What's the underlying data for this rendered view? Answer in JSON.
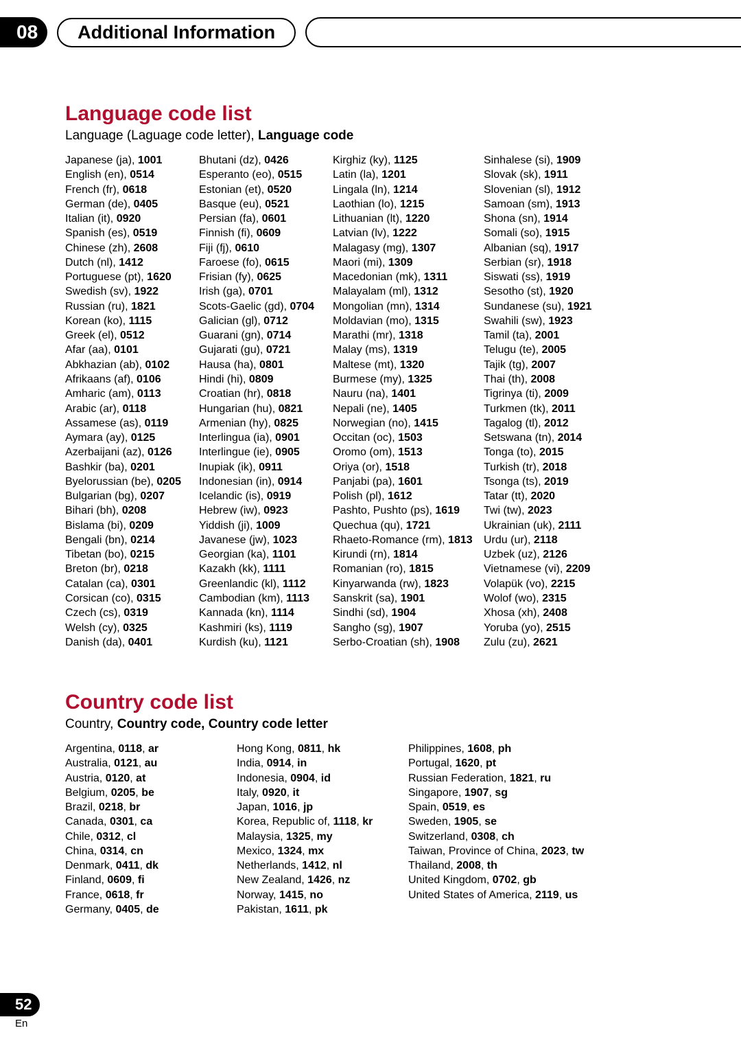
{
  "header": {
    "chapter_number": "08",
    "chapter_title": "Additional Information"
  },
  "footer": {
    "page_number": "52",
    "lang_label": "En"
  },
  "language_section": {
    "title": "Language code list",
    "subtitle_plain": "Language (Laguage code letter), ",
    "subtitle_bold": "Language code",
    "columns": [
      [
        {
          "name": "Japanese",
          "abbr": "ja",
          "code": "1001"
        },
        {
          "name": "English",
          "abbr": "en",
          "code": "0514"
        },
        {
          "name": "French",
          "abbr": "fr",
          "code": "0618"
        },
        {
          "name": "German",
          "abbr": "de",
          "code": "0405"
        },
        {
          "name": "Italian",
          "abbr": "it",
          "code": "0920"
        },
        {
          "name": "Spanish",
          "abbr": "es",
          "code": "0519"
        },
        {
          "name": "Chinese",
          "abbr": "zh",
          "code": "2608"
        },
        {
          "name": "Dutch",
          "abbr": "nl",
          "code": "1412"
        },
        {
          "name": "Portuguese",
          "abbr": "pt",
          "code": "1620"
        },
        {
          "name": "Swedish",
          "abbr": "sv",
          "code": "1922"
        },
        {
          "name": "Russian",
          "abbr": "ru",
          "code": "1821"
        },
        {
          "name": "Korean",
          "abbr": "ko",
          "code": "1115"
        },
        {
          "name": "Greek",
          "abbr": "el",
          "code": "0512"
        },
        {
          "name": "Afar",
          "abbr": "aa",
          "code": "0101"
        },
        {
          "name": "Abkhazian",
          "abbr": "ab",
          "code": "0102"
        },
        {
          "name": "Afrikaans",
          "abbr": "af",
          "code": "0106"
        },
        {
          "name": "Amharic",
          "abbr": "am",
          "code": "0113"
        },
        {
          "name": "Arabic",
          "abbr": "ar",
          "code": "0118"
        },
        {
          "name": "Assamese",
          "abbr": "as",
          "code": "0119"
        },
        {
          "name": "Aymara",
          "abbr": "ay",
          "code": "0125"
        },
        {
          "name": "Azerbaijani",
          "abbr": "az",
          "code": "0126"
        },
        {
          "name": "Bashkir",
          "abbr": "ba",
          "code": "0201"
        },
        {
          "name": "Byelorussian",
          "abbr": "be",
          "code": "0205"
        },
        {
          "name": "Bulgarian",
          "abbr": "bg",
          "code": "0207"
        },
        {
          "name": "Bihari",
          "abbr": "bh",
          "code": "0208"
        },
        {
          "name": "Bislama",
          "abbr": "bi",
          "code": "0209"
        },
        {
          "name": "Bengali",
          "abbr": "bn",
          "code": "0214"
        },
        {
          "name": "Tibetan",
          "abbr": "bo",
          "code": "0215"
        },
        {
          "name": "Breton",
          "abbr": "br",
          "code": "0218"
        },
        {
          "name": "Catalan",
          "abbr": "ca",
          "code": "0301"
        },
        {
          "name": "Corsican",
          "abbr": "co",
          "code": "0315"
        },
        {
          "name": "Czech",
          "abbr": "cs",
          "code": "0319"
        },
        {
          "name": "Welsh",
          "abbr": "cy",
          "code": "0325"
        },
        {
          "name": "Danish",
          "abbr": "da",
          "code": "0401"
        }
      ],
      [
        {
          "name": "Bhutani",
          "abbr": "dz",
          "code": "0426"
        },
        {
          "name": "Esperanto",
          "abbr": "eo",
          "code": "0515"
        },
        {
          "name": "Estonian",
          "abbr": "et",
          "code": "0520"
        },
        {
          "name": "Basque",
          "abbr": "eu",
          "code": "0521"
        },
        {
          "name": "Persian",
          "abbr": "fa",
          "code": "0601"
        },
        {
          "name": "Finnish",
          "abbr": "fi",
          "code": "0609"
        },
        {
          "name": "Fiji",
          "abbr": "fj",
          "code": "0610"
        },
        {
          "name": "Faroese",
          "abbr": "fo",
          "code": "0615"
        },
        {
          "name": "Frisian",
          "abbr": "fy",
          "code": "0625"
        },
        {
          "name": "Irish",
          "abbr": "ga",
          "code": "0701"
        },
        {
          "name": "Scots-Gaelic",
          "abbr": "gd",
          "code": "0704"
        },
        {
          "name": "Galician",
          "abbr": "gl",
          "code": "0712"
        },
        {
          "name": "Guarani",
          "abbr": "gn",
          "code": "0714"
        },
        {
          "name": "Gujarati",
          "abbr": "gu",
          "code": "0721"
        },
        {
          "name": "Hausa",
          "abbr": "ha",
          "code": "0801"
        },
        {
          "name": "Hindi",
          "abbr": "hi",
          "code": "0809"
        },
        {
          "name": "Croatian",
          "abbr": "hr",
          "code": "0818"
        },
        {
          "name": "Hungarian",
          "abbr": "hu",
          "code": "0821"
        },
        {
          "name": "Armenian",
          "abbr": "hy",
          "code": "0825"
        },
        {
          "name": "Interlingua",
          "abbr": "ia",
          "code": "0901"
        },
        {
          "name": "Interlingue",
          "abbr": "ie",
          "code": "0905"
        },
        {
          "name": "Inupiak",
          "abbr": "ik",
          "code": "0911"
        },
        {
          "name": "Indonesian",
          "abbr": "in",
          "code": "0914"
        },
        {
          "name": "Icelandic",
          "abbr": "is",
          "code": "0919"
        },
        {
          "name": "Hebrew",
          "abbr": "iw",
          "code": "0923"
        },
        {
          "name": "Yiddish",
          "abbr": "ji",
          "code": "1009"
        },
        {
          "name": "Javanese",
          "abbr": "jw",
          "code": "1023"
        },
        {
          "name": "Georgian",
          "abbr": "ka",
          "code": "1101"
        },
        {
          "name": "Kazakh",
          "abbr": "kk",
          "code": "1111"
        },
        {
          "name": "Greenlandic",
          "abbr": "kl",
          "code": "1112"
        },
        {
          "name": "Cambodian",
          "abbr": "km",
          "code": "1113"
        },
        {
          "name": "Kannada",
          "abbr": "kn",
          "code": "1114"
        },
        {
          "name": "Kashmiri",
          "abbr": "ks",
          "code": "1119"
        },
        {
          "name": "Kurdish",
          "abbr": "ku",
          "code": "1121"
        }
      ],
      [
        {
          "name": "Kirghiz",
          "abbr": "ky",
          "code": "1125"
        },
        {
          "name": "Latin",
          "abbr": "la",
          "code": "1201"
        },
        {
          "name": "Lingala",
          "abbr": "ln",
          "code": "1214"
        },
        {
          "name": "Laothian",
          "abbr": "lo",
          "code": "1215"
        },
        {
          "name": "Lithuanian",
          "abbr": "lt",
          "code": "1220"
        },
        {
          "name": "Latvian",
          "abbr": "lv",
          "code": "1222"
        },
        {
          "name": "Malagasy",
          "abbr": "mg",
          "code": "1307"
        },
        {
          "name": "Maori",
          "abbr": "mi",
          "code": "1309"
        },
        {
          "name": "Macedonian",
          "abbr": "mk",
          "code": "1311"
        },
        {
          "name": "Malayalam",
          "abbr": "ml",
          "code": "1312"
        },
        {
          "name": "Mongolian",
          "abbr": "mn",
          "code": "1314"
        },
        {
          "name": "Moldavian",
          "abbr": "mo",
          "code": "1315"
        },
        {
          "name": "Marathi",
          "abbr": "mr",
          "code": "1318"
        },
        {
          "name": "Malay",
          "abbr": "ms",
          "code": "1319"
        },
        {
          "name": "Maltese",
          "abbr": "mt",
          "code": "1320"
        },
        {
          "name": "Burmese",
          "abbr": "my",
          "code": "1325"
        },
        {
          "name": "Nauru",
          "abbr": "na",
          "code": "1401"
        },
        {
          "name": "Nepali",
          "abbr": "ne",
          "code": "1405"
        },
        {
          "name": "Norwegian",
          "abbr": "no",
          "code": "1415"
        },
        {
          "name": "Occitan",
          "abbr": "oc",
          "code": "1503"
        },
        {
          "name": "Oromo",
          "abbr": "om",
          "code": "1513"
        },
        {
          "name": "Oriya",
          "abbr": "or",
          "code": "1518"
        },
        {
          "name": "Panjabi",
          "abbr": "pa",
          "code": "1601"
        },
        {
          "name": "Polish",
          "abbr": "pl",
          "code": "1612"
        },
        {
          "name": "Pashto, Pushto",
          "abbr": "ps",
          "code": "1619"
        },
        {
          "name": "Quechua",
          "abbr": "qu",
          "code": "1721"
        },
        {
          "name": "Rhaeto-Romance",
          "abbr": "rm",
          "code": "1813"
        },
        {
          "name": "Kirundi",
          "abbr": "rn",
          "code": "1814"
        },
        {
          "name": "Romanian",
          "abbr": "ro",
          "code": "1815"
        },
        {
          "name": "Kinyarwanda",
          "abbr": "rw",
          "code": "1823"
        },
        {
          "name": "Sanskrit",
          "abbr": "sa",
          "code": "1901"
        },
        {
          "name": "Sindhi",
          "abbr": "sd",
          "code": "1904"
        },
        {
          "name": "Sangho",
          "abbr": "sg",
          "code": "1907"
        },
        {
          "name": "Serbo-Croatian",
          "abbr": "sh",
          "code": "1908"
        }
      ],
      [
        {
          "name": "Sinhalese",
          "abbr": "si",
          "code": "1909"
        },
        {
          "name": "Slovak",
          "abbr": "sk",
          "code": "1911"
        },
        {
          "name": "Slovenian",
          "abbr": "sl",
          "code": "1912"
        },
        {
          "name": "Samoan",
          "abbr": "sm",
          "code": "1913"
        },
        {
          "name": "Shona",
          "abbr": "sn",
          "code": "1914"
        },
        {
          "name": "Somali",
          "abbr": "so",
          "code": "1915"
        },
        {
          "name": "Albanian",
          "abbr": "sq",
          "code": "1917"
        },
        {
          "name": "Serbian",
          "abbr": "sr",
          "code": "1918"
        },
        {
          "name": "Siswati",
          "abbr": "ss",
          "code": "1919"
        },
        {
          "name": "Sesotho",
          "abbr": "st",
          "code": "1920"
        },
        {
          "name": "Sundanese",
          "abbr": "su",
          "code": "1921"
        },
        {
          "name": "Swahili",
          "abbr": "sw",
          "code": "1923"
        },
        {
          "name": "Tamil",
          "abbr": "ta",
          "code": "2001"
        },
        {
          "name": "Telugu",
          "abbr": "te",
          "code": "2005"
        },
        {
          "name": "Tajik",
          "abbr": "tg",
          "code": "2007"
        },
        {
          "name": "Thai",
          "abbr": "th",
          "code": "2008"
        },
        {
          "name": "Tigrinya",
          "abbr": "ti",
          "code": "2009"
        },
        {
          "name": "Turkmen",
          "abbr": "tk",
          "code": "2011"
        },
        {
          "name": "Tagalog",
          "abbr": "tl",
          "code": "2012"
        },
        {
          "name": "Setswana",
          "abbr": "tn",
          "code": "2014"
        },
        {
          "name": "Tonga",
          "abbr": "to",
          "code": "2015"
        },
        {
          "name": "Turkish",
          "abbr": "tr",
          "code": "2018"
        },
        {
          "name": "Tsonga",
          "abbr": "ts",
          "code": "2019"
        },
        {
          "name": "Tatar",
          "abbr": "tt",
          "code": "2020"
        },
        {
          "name": "Twi",
          "abbr": "tw",
          "code": "2023"
        },
        {
          "name": "Ukrainian",
          "abbr": "uk",
          "code": "2111"
        },
        {
          "name": "Urdu",
          "abbr": "ur",
          "code": "2118"
        },
        {
          "name": "Uzbek",
          "abbr": "uz",
          "code": "2126"
        },
        {
          "name": "Vietnamese",
          "abbr": "vi",
          "code": "2209"
        },
        {
          "name": "Volapük",
          "abbr": "vo",
          "code": "2215"
        },
        {
          "name": "Wolof",
          "abbr": "wo",
          "code": "2315"
        },
        {
          "name": "Xhosa",
          "abbr": "xh",
          "code": "2408"
        },
        {
          "name": "Yoruba",
          "abbr": "yo",
          "code": "2515"
        },
        {
          "name": "Zulu",
          "abbr": "zu",
          "code": "2621"
        }
      ]
    ]
  },
  "country_section": {
    "title": "Country code list",
    "subtitle_plain": "Country, ",
    "subtitle_bold": "Country code, Country code letter",
    "columns": [
      [
        {
          "name": "Argentina",
          "code": "0118",
          "letter": "ar"
        },
        {
          "name": "Australia",
          "code": "0121",
          "letter": "au"
        },
        {
          "name": "Austria",
          "code": "0120",
          "letter": "at"
        },
        {
          "name": "Belgium",
          "code": "0205",
          "letter": "be"
        },
        {
          "name": "Brazil",
          "code": "0218",
          "letter": "br"
        },
        {
          "name": "Canada",
          "code": "0301",
          "letter": "ca"
        },
        {
          "name": "Chile",
          "code": "0312",
          "letter": "cl"
        },
        {
          "name": "China",
          "code": "0314",
          "letter": "cn"
        },
        {
          "name": "Denmark",
          "code": "0411",
          "letter": "dk"
        },
        {
          "name": "Finland",
          "code": "0609",
          "letter": "fi"
        },
        {
          "name": "France",
          "code": "0618",
          "letter": "fr"
        },
        {
          "name": "Germany",
          "code": "0405",
          "letter": "de"
        }
      ],
      [
        {
          "name": "Hong Kong",
          "code": "0811",
          "letter": "hk"
        },
        {
          "name": "India",
          "code": "0914",
          "letter": "in"
        },
        {
          "name": "Indonesia",
          "code": "0904",
          "letter": "id"
        },
        {
          "name": "Italy",
          "code": "0920",
          "letter": "it"
        },
        {
          "name": "Japan",
          "code": "1016",
          "letter": "jp"
        },
        {
          "name": "Korea, Republic of",
          "code": "1118",
          "letter": "kr"
        },
        {
          "name": "Malaysia",
          "code": "1325",
          "letter": "my"
        },
        {
          "name": "Mexico",
          "code": "1324",
          "letter": "mx"
        },
        {
          "name": "Netherlands",
          "code": "1412",
          "letter": "nl"
        },
        {
          "name": "New Zealand",
          "code": "1426",
          "letter": "nz"
        },
        {
          "name": "Norway",
          "code": "1415",
          "letter": "no"
        },
        {
          "name": "Pakistan",
          "code": "1611",
          "letter": "pk"
        }
      ],
      [
        {
          "name": "Philippines",
          "code": "1608",
          "letter": "ph"
        },
        {
          "name": "Portugal",
          "code": "1620",
          "letter": "pt"
        },
        {
          "name": "Russian Federation",
          "code": "1821",
          "letter": "ru"
        },
        {
          "name": "Singapore",
          "code": "1907",
          "letter": "sg"
        },
        {
          "name": "Spain",
          "code": "0519",
          "letter": "es"
        },
        {
          "name": "Sweden",
          "code": "1905",
          "letter": "se"
        },
        {
          "name": "Switzerland",
          "code": "0308",
          "letter": "ch"
        },
        {
          "name": "Taiwan, Province of China",
          "code": "2023",
          "letter": "tw"
        },
        {
          "name": "Thailand",
          "code": "2008",
          "letter": "th"
        },
        {
          "name": "United Kingdom",
          "code": "0702",
          "letter": "gb"
        },
        {
          "name": "United States of America",
          "code": "2119",
          "letter": "us"
        }
      ]
    ]
  },
  "colors": {
    "accent": "#b01030",
    "text": "#000000",
    "bg": "#ffffff"
  }
}
